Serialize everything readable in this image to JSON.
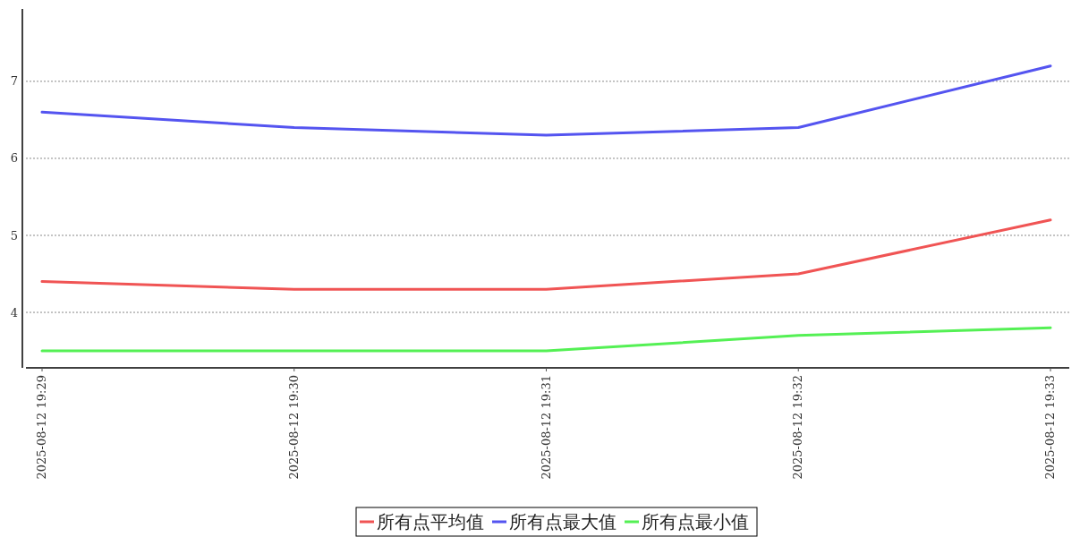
{
  "chart_data": {
    "type": "line",
    "categories": [
      "2025-08-12 19:29",
      "2025-08-12 19:30",
      "2025-08-12 19:31",
      "2025-08-12 19:32",
      "2025-08-12 19:33"
    ],
    "series": [
      {
        "name": "所有点平均值",
        "color": "#f05454",
        "values": [
          4.4,
          4.3,
          4.3,
          4.5,
          5.2
        ]
      },
      {
        "name": "所有点最大值",
        "color": "#5454f0",
        "values": [
          6.6,
          6.4,
          6.3,
          6.4,
          7.2
        ]
      },
      {
        "name": "所有点最小值",
        "color": "#54f054",
        "values": [
          3.5,
          3.5,
          3.5,
          3.7,
          3.8
        ]
      }
    ],
    "ylim": [
      3.28,
      7.94
    ],
    "yticks": [
      4,
      5,
      6,
      7
    ],
    "grid": "y",
    "legend": "bottom",
    "line_style": "solid",
    "marker": "none"
  }
}
